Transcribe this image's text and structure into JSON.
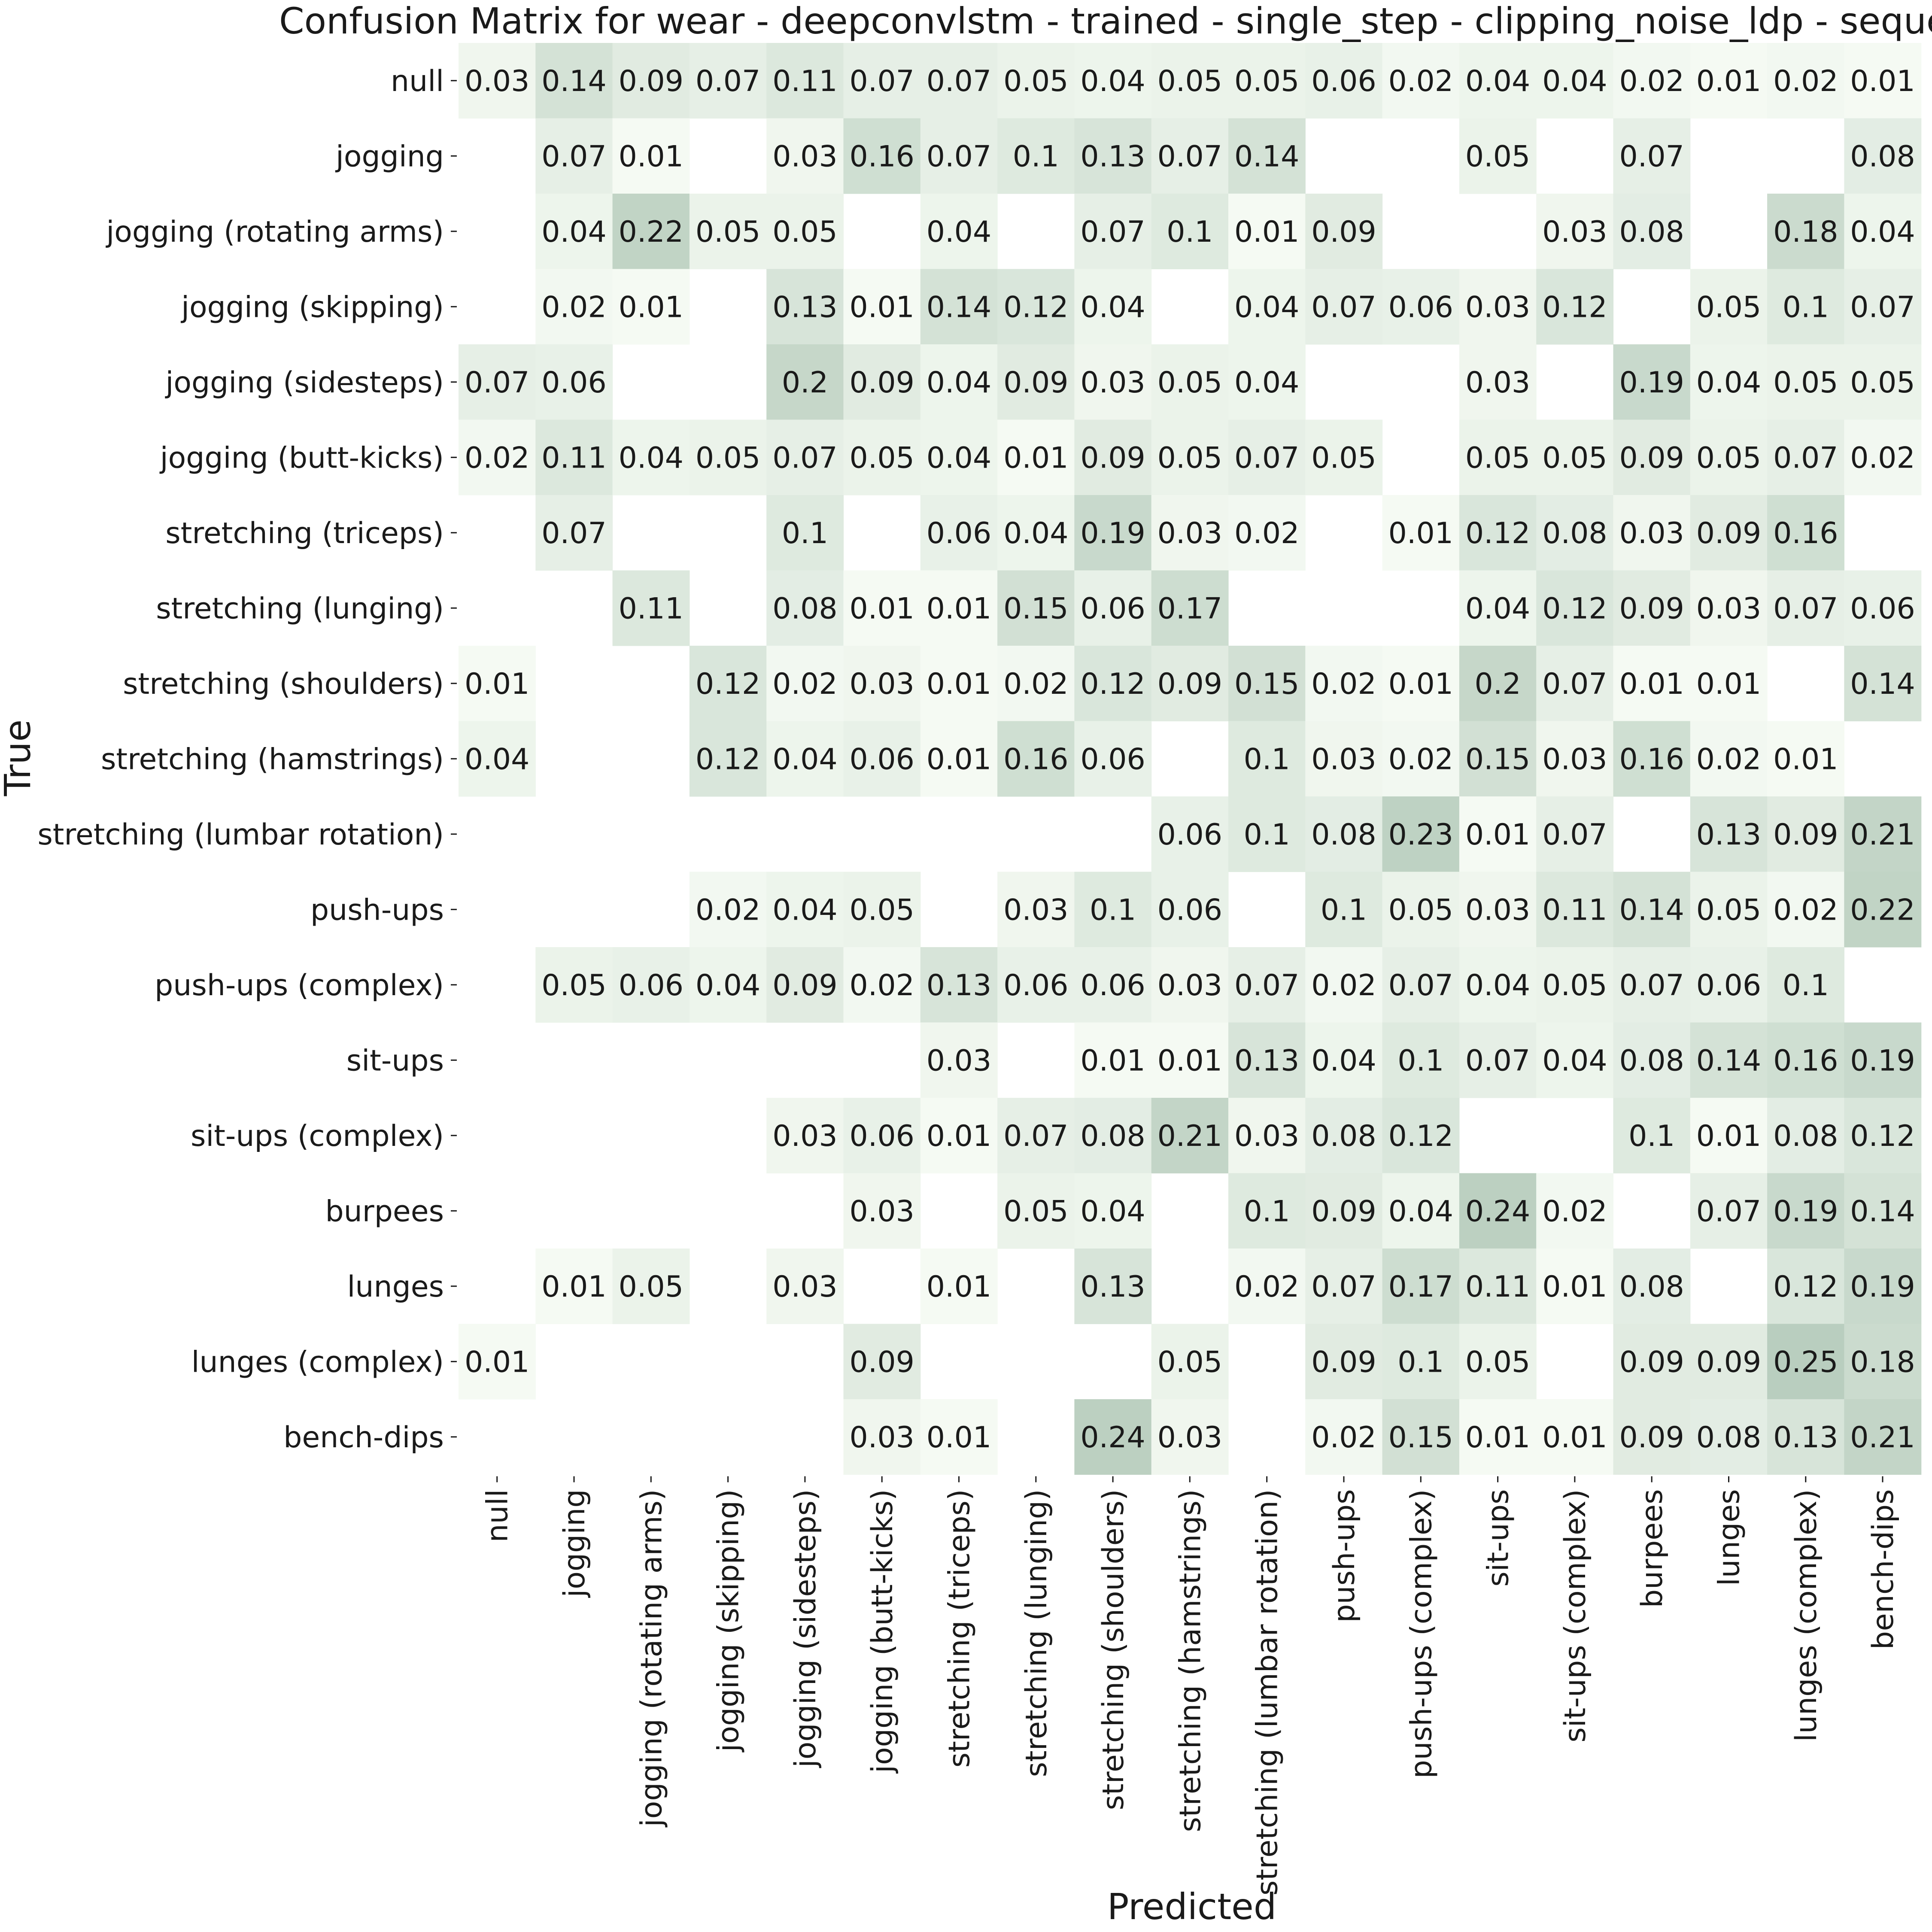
{
  "chart_data": {
    "type": "heatmap",
    "title": "Confusion Matrix for wear - deepconvlstm - trained - single_step - clipping_noise_ldp - seque",
    "xlabel": "Predicted",
    "ylabel": "True",
    "labels": [
      "null",
      "jogging",
      "jogging (rotating arms)",
      "jogging (skipping)",
      "jogging (sidesteps)",
      "jogging (butt-kicks)",
      "stretching (triceps)",
      "stretching (lunging)",
      "stretching (shoulders)",
      "stretching (hamstrings)",
      "stretching (lumbar rotation)",
      "push-ups",
      "push-ups (complex)",
      "sit-ups",
      "sit-ups (complex)",
      "burpees",
      "lunges",
      "lunges (complex)",
      "bench-dips"
    ],
    "values": [
      [
        0.03,
        0.14,
        0.09,
        0.07,
        0.11,
        0.07,
        0.07,
        0.05,
        0.04,
        0.05,
        0.05,
        0.06,
        0.02,
        0.04,
        0.04,
        0.02,
        0.01,
        0.02,
        0.01
      ],
      [
        null,
        0.07,
        0.01,
        null,
        0.03,
        0.16,
        0.07,
        0.1,
        0.13,
        0.07,
        0.14,
        null,
        null,
        0.05,
        null,
        0.07,
        null,
        null,
        0.08
      ],
      [
        null,
        0.04,
        0.22,
        0.05,
        0.05,
        null,
        0.04,
        null,
        0.07,
        0.1,
        0.01,
        0.09,
        null,
        null,
        0.03,
        0.08,
        null,
        0.18,
        0.04
      ],
      [
        null,
        0.02,
        0.01,
        null,
        0.13,
        0.01,
        0.14,
        0.12,
        0.04,
        null,
        0.04,
        0.07,
        0.06,
        0.03,
        0.12,
        null,
        0.05,
        0.1,
        0.07
      ],
      [
        0.07,
        0.06,
        null,
        null,
        0.2,
        0.09,
        0.04,
        0.09,
        0.03,
        0.05,
        0.04,
        null,
        null,
        0.03,
        null,
        0.19,
        0.04,
        0.05,
        0.05
      ],
      [
        0.02,
        0.11,
        0.04,
        0.05,
        0.07,
        0.05,
        0.04,
        0.01,
        0.09,
        0.05,
        0.07,
        0.05,
        null,
        0.05,
        0.05,
        0.09,
        0.05,
        0.07,
        0.02
      ],
      [
        null,
        0.07,
        null,
        null,
        0.1,
        null,
        0.06,
        0.04,
        0.19,
        0.03,
        0.02,
        null,
        0.01,
        0.12,
        0.08,
        0.03,
        0.09,
        0.16,
        null
      ],
      [
        null,
        null,
        0.11,
        null,
        0.08,
        0.01,
        0.01,
        0.15,
        0.06,
        0.17,
        null,
        null,
        null,
        0.04,
        0.12,
        0.09,
        0.03,
        0.07,
        0.06
      ],
      [
        0.01,
        null,
        null,
        0.12,
        0.02,
        0.03,
        0.01,
        0.02,
        0.12,
        0.09,
        0.15,
        0.02,
        0.01,
        0.2,
        0.07,
        0.01,
        0.01,
        null,
        0.14
      ],
      [
        0.04,
        null,
        null,
        0.12,
        0.04,
        0.06,
        0.01,
        0.16,
        0.06,
        null,
        0.1,
        0.03,
        0.02,
        0.15,
        0.03,
        0.16,
        0.02,
        0.01,
        null
      ],
      [
        null,
        null,
        null,
        null,
        null,
        null,
        null,
        null,
        null,
        0.06,
        0.1,
        0.08,
        0.23,
        0.01,
        0.07,
        null,
        0.13,
        0.09,
        0.21
      ],
      [
        null,
        null,
        null,
        0.02,
        0.04,
        0.05,
        null,
        0.03,
        0.1,
        0.06,
        null,
        0.1,
        0.05,
        0.03,
        0.11,
        0.14,
        0.05,
        0.02,
        0.22
      ],
      [
        null,
        0.05,
        0.06,
        0.04,
        0.09,
        0.02,
        0.13,
        0.06,
        0.06,
        0.03,
        0.07,
        0.02,
        0.07,
        0.04,
        0.05,
        0.07,
        0.06,
        0.1,
        null
      ],
      [
        null,
        null,
        null,
        null,
        null,
        null,
        0.03,
        null,
        0.01,
        0.01,
        0.13,
        0.04,
        0.1,
        0.07,
        0.04,
        0.08,
        0.14,
        0.16,
        0.19
      ],
      [
        null,
        null,
        null,
        null,
        0.03,
        0.06,
        0.01,
        0.07,
        0.08,
        0.21,
        0.03,
        0.08,
        0.12,
        null,
        null,
        0.1,
        0.01,
        0.08,
        0.12
      ],
      [
        null,
        null,
        null,
        null,
        null,
        0.03,
        null,
        0.05,
        0.04,
        null,
        0.1,
        0.09,
        0.04,
        0.24,
        0.02,
        null,
        0.07,
        0.19,
        0.14
      ],
      [
        null,
        0.01,
        0.05,
        null,
        0.03,
        null,
        0.01,
        null,
        0.13,
        null,
        0.02,
        0.07,
        0.17,
        0.11,
        0.01,
        0.08,
        null,
        0.12,
        0.19
      ],
      [
        0.01,
        null,
        null,
        null,
        null,
        0.09,
        null,
        null,
        null,
        0.05,
        null,
        0.09,
        0.1,
        0.05,
        null,
        0.09,
        0.09,
        0.25,
        0.18
      ],
      [
        null,
        null,
        null,
        null,
        null,
        0.03,
        0.01,
        null,
        0.24,
        0.03,
        null,
        0.02,
        0.15,
        0.01,
        0.01,
        0.09,
        0.08,
        0.13,
        0.21
      ]
    ],
    "vmin": 0,
    "vmax": 1,
    "color_low": "#f7fcf5",
    "color_high": "#00441b",
    "colorbar": false,
    "grid": false
  }
}
